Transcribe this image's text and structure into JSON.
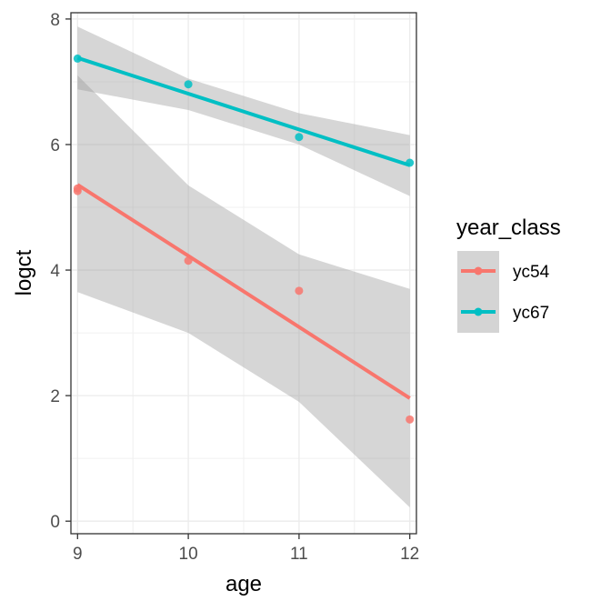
{
  "chart_data": {
    "type": "scatter",
    "title": "",
    "xlabel": "age",
    "ylabel": "logct",
    "xlim": [
      8.94,
      12.06
    ],
    "ylim": [
      -0.2,
      8.1
    ],
    "x_ticks": [
      9,
      10,
      11,
      12
    ],
    "y_ticks": [
      0,
      2,
      4,
      6,
      8
    ],
    "grid": true,
    "legend": {
      "title": "year_class",
      "placement": "right"
    },
    "series": [
      {
        "name": "yc54",
        "color": "#F8766D",
        "points": [
          {
            "x": 9,
            "y": 5.26
          },
          {
            "x": 9,
            "y": 5.3
          },
          {
            "x": 10,
            "y": 4.15
          },
          {
            "x": 11,
            "y": 3.67
          },
          {
            "x": 12,
            "y": 1.62
          }
        ],
        "fit": {
          "x_start": 9,
          "y_start": 5.36,
          "x_end": 12,
          "y_end": 1.96
        },
        "band": [
          {
            "x": 9,
            "lower": 3.65,
            "upper": 7.1
          },
          {
            "x": 10,
            "lower": 3.0,
            "upper": 5.35
          },
          {
            "x": 11,
            "lower": 1.9,
            "upper": 4.25
          },
          {
            "x": 12,
            "lower": 0.22,
            "upper": 3.7
          }
        ]
      },
      {
        "name": "yc67",
        "color": "#00BFC4",
        "points": [
          {
            "x": 9,
            "y": 7.37
          },
          {
            "x": 10,
            "y": 6.96
          },
          {
            "x": 11,
            "y": 6.12
          },
          {
            "x": 12,
            "y": 5.71
          }
        ],
        "fit": {
          "x_start": 9,
          "y_start": 7.38,
          "x_end": 12,
          "y_end": 5.67
        },
        "band": [
          {
            "x": 9,
            "lower": 6.88,
            "upper": 7.88
          },
          {
            "x": 10,
            "lower": 6.55,
            "upper": 7.05
          },
          {
            "x": 11,
            "lower": 6.0,
            "upper": 6.5
          },
          {
            "x": 12,
            "lower": 5.18,
            "upper": 6.15
          }
        ]
      }
    ]
  }
}
